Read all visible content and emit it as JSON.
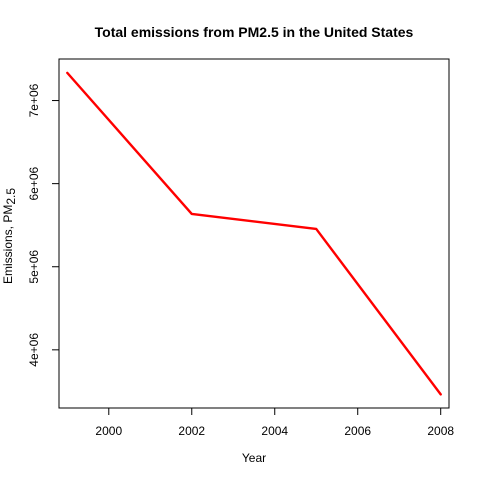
{
  "chart_data": {
    "type": "line",
    "title": "Total emissions from PM2.5 in the United States",
    "xlabel": "Year",
    "ylabel": {
      "main": "Emissions, PM",
      "sub": "2.5"
    },
    "x": [
      1999,
      2002,
      2005,
      2008
    ],
    "series": [
      {
        "values": [
          7332967,
          5635780,
          5454703,
          3464206
        ],
        "color": "#ff0000"
      }
    ],
    "xlim": [
      1998.8,
      2008.2
    ],
    "ylim": [
      3300000,
      7500000
    ],
    "xticks": [
      2000,
      2002,
      2004,
      2006,
      2008
    ],
    "xtick_labels": [
      "2000",
      "2002",
      "2004",
      "2006",
      "2008"
    ],
    "yticks": [
      4000000,
      5000000,
      6000000,
      7000000
    ],
    "ytick_labels": [
      "4e+06",
      "5e+06",
      "6e+06",
      "7e+06"
    ],
    "grid": false,
    "legend": "none"
  }
}
